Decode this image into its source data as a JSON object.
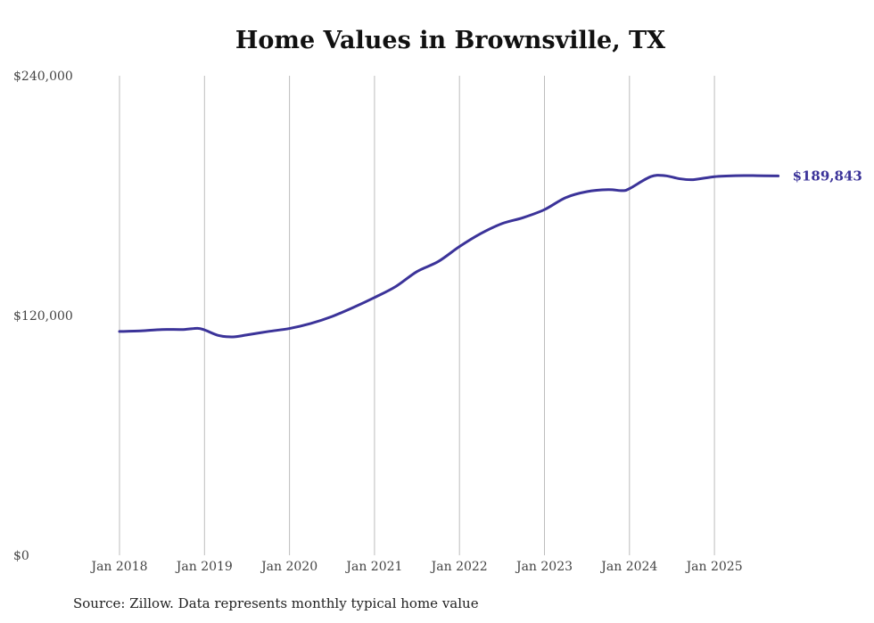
{
  "chart_data": {
    "type": "line",
    "title": "Home Values in Brownsville, TX",
    "source": "Source: Zillow. Data represents monthly typical home value",
    "xlabel": "",
    "ylabel": "",
    "ylim": [
      0,
      240000
    ],
    "yticks": [
      0,
      120000,
      240000
    ],
    "ytick_labels": [
      "$0",
      "$120,000",
      "$240,000"
    ],
    "xticks": [
      0,
      12,
      24,
      36,
      48,
      60,
      72,
      84
    ],
    "xtick_labels": [
      "Jan 2018",
      "Jan 2019",
      "Jan 2020",
      "Jan 2021",
      "Jan 2022",
      "Jan 2023",
      "Jan 2024",
      "Jan 2025"
    ],
    "x_unit": "months since Jan 2018",
    "grid": "vertical",
    "line_color": "#3b3399",
    "end_label": "$189,843",
    "series": [
      {
        "name": "Typical home value",
        "x": [
          0,
          3,
          6,
          9,
          11,
          12,
          14,
          16,
          18,
          21,
          24,
          27,
          30,
          33,
          36,
          39,
          42,
          45,
          48,
          51,
          54,
          57,
          60,
          63,
          66,
          69,
          71,
          72,
          75,
          77,
          79,
          81,
          84,
          87,
          90,
          93
        ],
        "values": [
          112000,
          112300,
          113000,
          113000,
          113600,
          112800,
          110000,
          109300,
          110300,
          112000,
          113500,
          116000,
          119500,
          124000,
          129000,
          134500,
          142000,
          147000,
          154500,
          161000,
          166000,
          169000,
          173000,
          179000,
          182000,
          183000,
          182500,
          183500,
          189500,
          190000,
          188500,
          188000,
          189500,
          190000,
          190000,
          189843
        ]
      }
    ]
  }
}
